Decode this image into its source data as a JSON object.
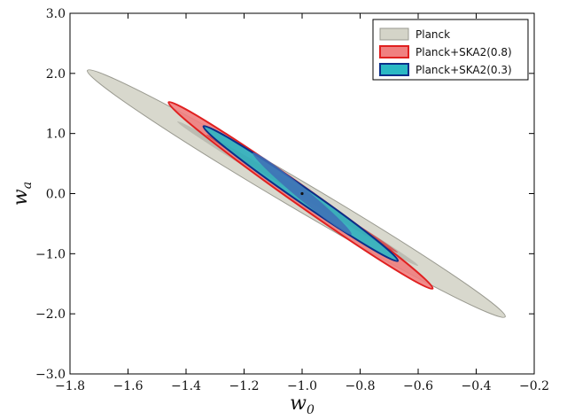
{
  "chart_data": {
    "type": "scatter",
    "title": "",
    "xlabel": "w",
    "xlabel_sub": "0",
    "ylabel": "w",
    "ylabel_sub": "a",
    "xlim": [
      -1.8,
      -0.2
    ],
    "ylim": [
      -3.0,
      3.0
    ],
    "x_ticks": [
      -1.8,
      -1.6,
      -1.4,
      -1.2,
      -1.0,
      -0.8,
      -0.6,
      -0.4,
      -0.2
    ],
    "x_tick_labels": [
      "−1.8",
      "−1.6",
      "−1.4",
      "−1.2",
      "−1.0",
      "−0.8",
      "−0.6",
      "−0.4",
      "−0.2"
    ],
    "y_ticks": [
      -3.0,
      -2.0,
      -1.0,
      0.0,
      1.0,
      2.0,
      3.0
    ],
    "y_tick_labels": [
      "−3.0",
      "−2.0",
      "−1.0",
      "0.0",
      "1.0",
      "2.0",
      "3.0"
    ],
    "grid": false,
    "legend_position": "top-right",
    "fiducial_point": {
      "x": -1.0,
      "y": 0.0
    },
    "series": [
      {
        "name": "Planck",
        "fill": "#d4d4c8",
        "stroke": "#9a9a90",
        "contours": [
          {
            "level": "2-sigma",
            "ends": [
              [
                -1.74,
                2.05
              ],
              [
                -0.3,
                -2.05
              ]
            ],
            "half_width": 0.23
          },
          {
            "level": "1-sigma",
            "ends": [
              [
                -1.43,
                1.2
              ],
              [
                -0.6,
                -1.2
              ]
            ],
            "half_width": 0.08,
            "fill": "#b7b7ad"
          }
        ]
      },
      {
        "name": "Planck+SKA2(0.8)",
        "fill": "#f08080",
        "stroke": "#e02020",
        "contours": [
          {
            "level": "2-sigma",
            "ends": [
              [
                -1.46,
                1.52
              ],
              [
                -0.55,
                -1.58
              ]
            ],
            "half_width": 0.152
          },
          {
            "level": "1-sigma",
            "ends": [
              [
                -1.33,
                0.98
              ],
              [
                -0.67,
                -0.98
              ]
            ],
            "half_width": 0.055,
            "fill": "#d44a4a"
          }
        ]
      },
      {
        "name": "Planck+SKA2(0.3)",
        "fill": "#2ab8c4",
        "stroke": "#0b2f8a",
        "contours": [
          {
            "level": "2-sigma",
            "ends": [
              [
                -1.34,
                1.12
              ],
              [
                -0.67,
                -1.12
              ]
            ],
            "half_width": 0.125
          },
          {
            "level": "1-sigma",
            "ends": [
              [
                -1.17,
                0.68
              ],
              [
                -0.83,
                -0.68
              ]
            ],
            "half_width": 0.095,
            "fill": "#3f6fb6"
          }
        ]
      }
    ]
  }
}
